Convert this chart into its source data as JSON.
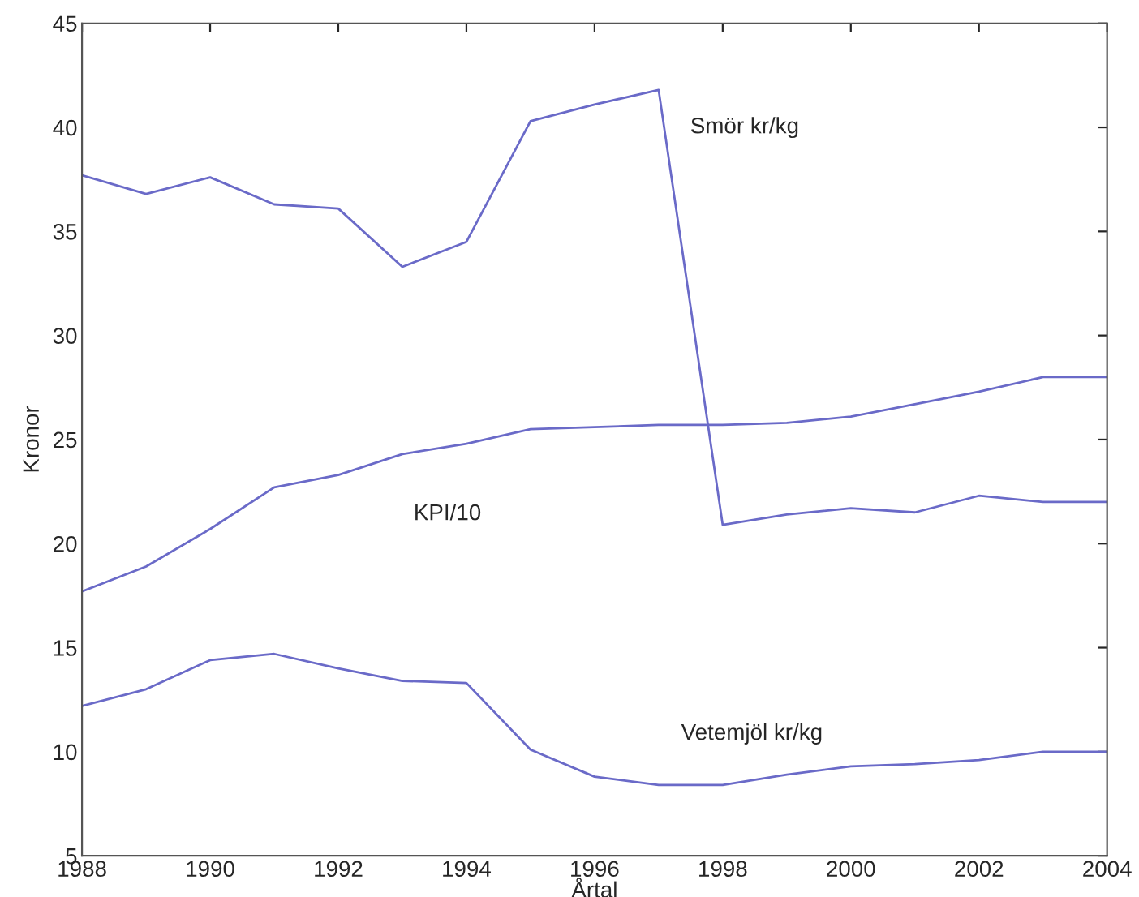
{
  "chart_data": {
    "type": "line",
    "xlabel": "Årtal",
    "ylabel": "Kronor",
    "x": [
      1988,
      1989,
      1990,
      1991,
      1992,
      1993,
      1994,
      1995,
      1996,
      1997,
      1998,
      1999,
      2000,
      2001,
      2002,
      2003,
      2004
    ],
    "series": [
      {
        "name": "Smör kr/kg",
        "color": "#6a6ac8",
        "values": [
          37.7,
          36.8,
          37.6,
          36.3,
          36.1,
          33.3,
          34.5,
          40.3,
          41.1,
          41.8,
          20.9,
          21.4,
          21.7,
          21.5,
          22.3,
          22.0,
          22.0
        ]
      },
      {
        "name": "KPI/10",
        "color": "#6a6ac8",
        "values": [
          17.7,
          18.9,
          20.7,
          22.7,
          23.3,
          24.3,
          24.8,
          25.5,
          25.6,
          25.7,
          25.7,
          25.8,
          26.1,
          26.7,
          27.3,
          28.0,
          28.0
        ]
      },
      {
        "name": "Vetemjöl kr/kg",
        "color": "#6a6ac8",
        "values": [
          12.2,
          13.0,
          14.4,
          14.7,
          14.0,
          13.4,
          13.3,
          10.1,
          8.8,
          8.4,
          8.4,
          8.9,
          9.3,
          9.4,
          9.6,
          10.0,
          10.0
        ]
      }
    ],
    "xlim": [
      1988,
      2004
    ],
    "xticks": [
      1988,
      1990,
      1992,
      1994,
      1996,
      1998,
      2000,
      2002,
      2004
    ],
    "ylim": [
      5,
      45
    ],
    "yticks": [
      5,
      10,
      15,
      20,
      25,
      30,
      35,
      40,
      45
    ],
    "grid": false,
    "legend": false,
    "marker": "none",
    "line_style": "solid"
  }
}
